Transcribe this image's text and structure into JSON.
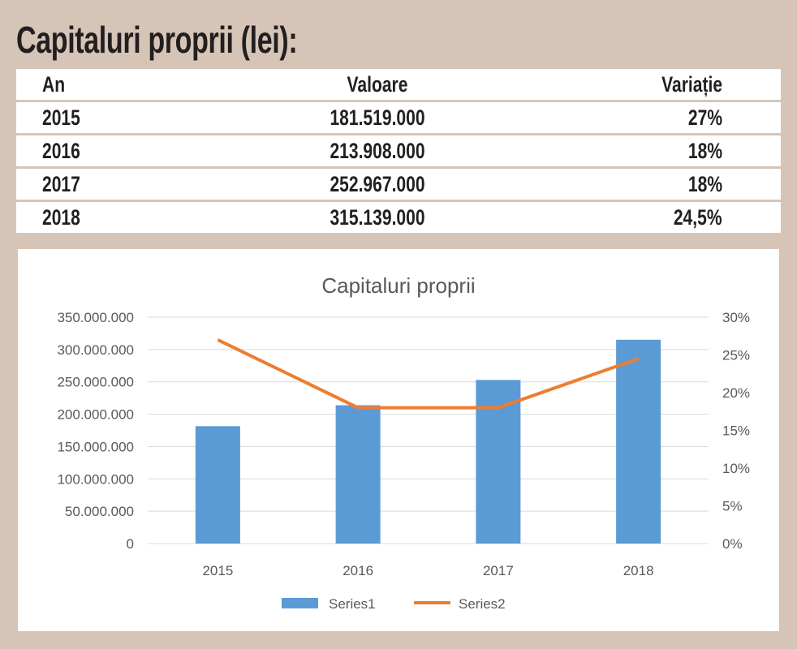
{
  "title": "Capitaluri proprii (lei):",
  "table": {
    "headers": [
      "An",
      "Valoare",
      "Variație"
    ],
    "rows": [
      [
        "2015",
        "181.519.000",
        "27%"
      ],
      [
        "2016",
        "213.908.000",
        "18%"
      ],
      [
        "2017",
        "252.967.000",
        "18%"
      ],
      [
        "2018",
        "315.139.000",
        "24,5%"
      ]
    ]
  },
  "chart_data": {
    "type": "bar",
    "title": "Capitaluri proprii",
    "categories": [
      "2015",
      "2016",
      "2017",
      "2018"
    ],
    "series": [
      {
        "name": "Series1",
        "type": "bar",
        "axis": "left",
        "values": [
          181519000,
          213908000,
          252967000,
          315139000
        ],
        "color": "#5b9bd5"
      },
      {
        "name": "Series2",
        "type": "line",
        "axis": "right",
        "values": [
          27,
          18,
          18,
          24.5
        ],
        "color": "#ed7d31"
      }
    ],
    "ylim": [
      0,
      350000000
    ],
    "y2lim": [
      0,
      30
    ],
    "yticks": [
      "0",
      "50.000.000",
      "100.000.000",
      "150.000.000",
      "200.000.000",
      "250.000.000",
      "300.000.000",
      "350.000.000"
    ],
    "y2ticks": [
      "0%",
      "5%",
      "10%",
      "15%",
      "20%",
      "25%",
      "30%"
    ],
    "grid": true,
    "legend": "bottom"
  }
}
